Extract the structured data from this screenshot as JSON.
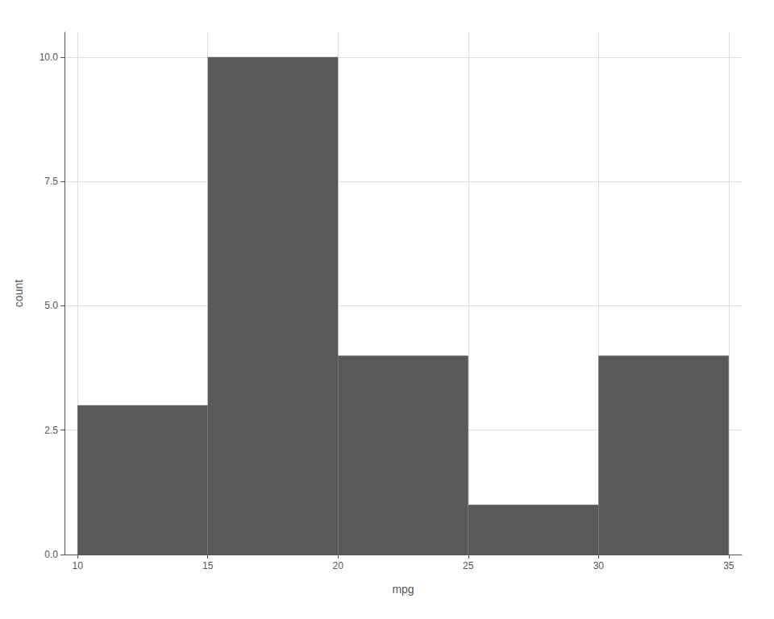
{
  "chart_data": {
    "type": "histogram",
    "bins": [
      10,
      15,
      20,
      25,
      30,
      35
    ],
    "values": [
      3,
      10,
      4,
      1,
      4
    ],
    "color": "#595959",
    "xlabel": "mpg",
    "ylabel": "count",
    "xlim": [
      9.5,
      35.5
    ],
    "ylim": [
      0,
      10.5
    ],
    "xticks": [
      10,
      15,
      20,
      25,
      30,
      35
    ],
    "yticks": [
      {
        "value": 0,
        "label": "0.0"
      },
      2.5,
      {
        "value": 5,
        "label": "5.0"
      },
      7.5,
      {
        "value": 10,
        "label": "10.0"
      }
    ],
    "grid": true
  }
}
